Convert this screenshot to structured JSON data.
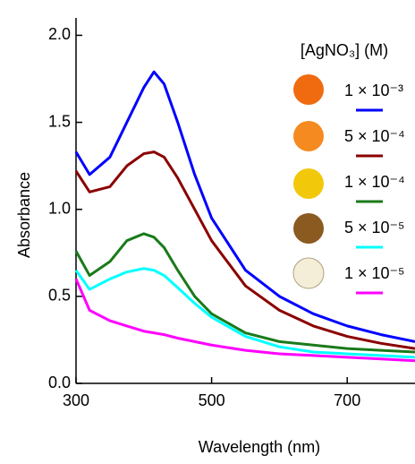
{
  "chart_data": {
    "type": "line",
    "x_label": "Wavelength (nm)",
    "y_label": "Absorbance",
    "legend_title": "[AgNO₃] (M)",
    "x": [
      300,
      320,
      350,
      375,
      400,
      415,
      430,
      450,
      475,
      500,
      550,
      600,
      650,
      700,
      750,
      800
    ],
    "series": [
      {
        "name": "1 × 10⁻³",
        "color": "#0000ff",
        "values": [
          1.33,
          1.2,
          1.3,
          1.5,
          1.7,
          1.79,
          1.72,
          1.5,
          1.2,
          0.95,
          0.65,
          0.5,
          0.4,
          0.33,
          0.28,
          0.24
        ]
      },
      {
        "name": "5 × 10⁻⁴",
        "color": "#8b0000",
        "values": [
          1.22,
          1.1,
          1.13,
          1.25,
          1.32,
          1.33,
          1.3,
          1.18,
          1.0,
          0.82,
          0.56,
          0.42,
          0.33,
          0.27,
          0.23,
          0.2
        ]
      },
      {
        "name": "1 × 10⁻⁴",
        "color": "#1a7a1a",
        "values": [
          0.76,
          0.62,
          0.7,
          0.82,
          0.86,
          0.84,
          0.78,
          0.65,
          0.5,
          0.4,
          0.29,
          0.24,
          0.22,
          0.2,
          0.19,
          0.18
        ]
      },
      {
        "name": "5 × 10⁻⁵",
        "color": "#00ffff",
        "values": [
          0.65,
          0.54,
          0.6,
          0.64,
          0.66,
          0.65,
          0.62,
          0.55,
          0.46,
          0.38,
          0.27,
          0.21,
          0.18,
          0.17,
          0.16,
          0.15
        ]
      },
      {
        "name": "1 × 10⁻⁵",
        "color": "#ff00ff",
        "values": [
          0.6,
          0.42,
          0.36,
          0.33,
          0.3,
          0.29,
          0.28,
          0.26,
          0.24,
          0.22,
          0.19,
          0.17,
          0.16,
          0.15,
          0.14,
          0.13
        ]
      }
    ],
    "xlim": [
      300,
      800
    ],
    "xticks": [
      300,
      500,
      700
    ],
    "ylim": [
      0,
      2.1
    ],
    "yticks": [
      {
        "value": 0,
        "label": "0.0"
      },
      0.5,
      {
        "value": 1,
        "label": "1.0"
      },
      1.5,
      {
        "value": 2,
        "label": "2.0"
      }
    ],
    "grid": false
  }
}
